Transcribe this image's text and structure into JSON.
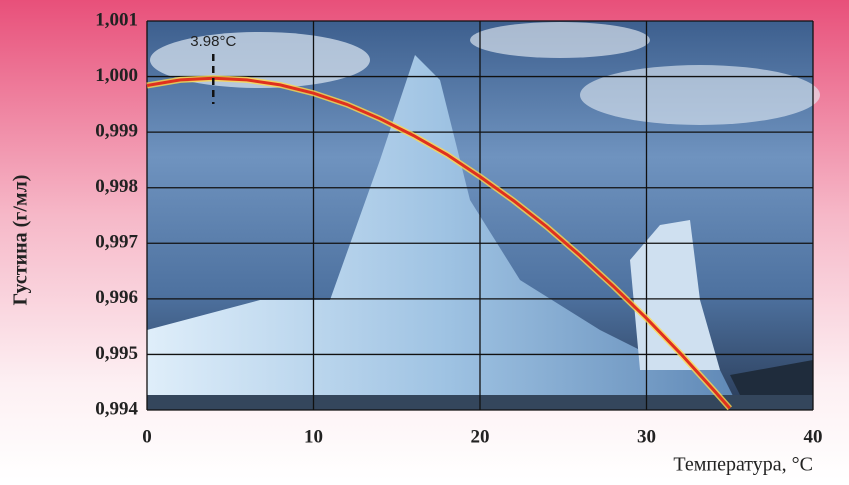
{
  "chart_data": {
    "type": "line",
    "x_label": "Температура, °C",
    "y_label": "Густина (г/мл)",
    "annotation": {
      "text": "3.98°C",
      "x": 3.98
    },
    "x": [
      0,
      2,
      4,
      6,
      8,
      10,
      12,
      14,
      16,
      18,
      20,
      22,
      24,
      26,
      28,
      30,
      32,
      34,
      35
    ],
    "values": [
      0.99984,
      0.99994,
      0.99997,
      0.99994,
      0.99985,
      0.9997,
      0.9995,
      0.99924,
      0.99894,
      0.9986,
      0.9982,
      0.99777,
      0.9973,
      0.99678,
      0.99623,
      0.99565,
      0.99503,
      0.99437,
      0.99403
    ],
    "color": "#e0301e",
    "xlim": [
      0,
      40
    ],
    "xticks": [
      0,
      10,
      20,
      30,
      40
    ],
    "ylim": [
      0.994,
      1.001
    ],
    "yticks": [
      {
        "value": 0.994,
        "label": "0,994"
      },
      {
        "value": 0.995,
        "label": "0,995"
      },
      {
        "value": 0.996,
        "label": "0,996"
      },
      {
        "value": 0.997,
        "label": "0,997"
      },
      {
        "value": 0.998,
        "label": "0,998"
      },
      {
        "value": 0.999,
        "label": "0,999"
      },
      {
        "value": 1.0,
        "label": "1,000"
      },
      {
        "value": 1.001,
        "label": "1,001"
      }
    ],
    "grid": true
  }
}
